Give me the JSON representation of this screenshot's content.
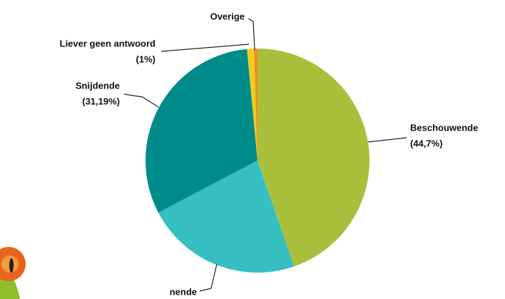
{
  "chart_data": {
    "type": "pie",
    "categories": [
      "Beschouwende",
      "nende",
      "Snijdende",
      "Liever geen antwoord",
      "Overige"
    ],
    "values": [
      44.7,
      22.61,
      31.19,
      1,
      0.5
    ],
    "value_labels": [
      "(44,7%)",
      null,
      "(31,19%)",
      "(1%)",
      null
    ],
    "colors": [
      "#a9bf3b",
      "#36bfc1",
      "#008b8b",
      "#f3cb1f",
      "#f08c1c"
    ]
  }
}
